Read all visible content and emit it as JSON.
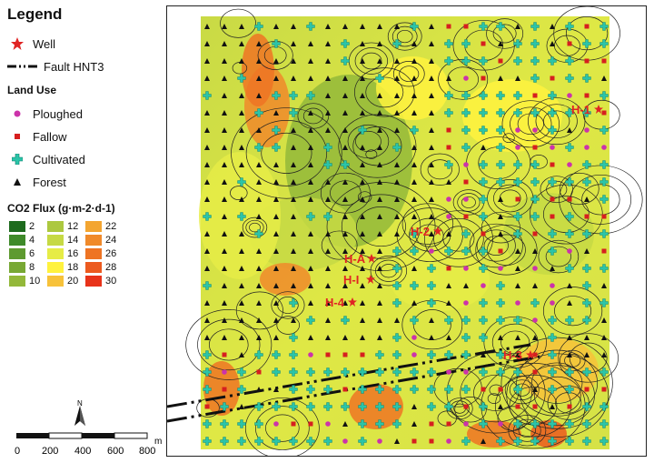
{
  "legend": {
    "title": "Legend",
    "well_label": "Well",
    "fault_label": "Fault HNT3",
    "landuse_title": "Land Use",
    "landuse": [
      {
        "label": "Ploughed",
        "symbol": "dot",
        "color": "#cc33aa"
      },
      {
        "label": "Fallow",
        "symbol": "square",
        "color": "#d61f1f"
      },
      {
        "label": "Cultivated",
        "symbol": "cross",
        "color": "#2bc4a8"
      },
      {
        "label": "Forest",
        "symbol": "triangle",
        "color": "#111111"
      }
    ],
    "flux_title": "CO2 Flux (g·m-2·d-1)",
    "flux_classes": [
      {
        "value": "2",
        "color": "#1e6b1e"
      },
      {
        "value": "4",
        "color": "#3f8a2a"
      },
      {
        "value": "6",
        "color": "#5e9a30"
      },
      {
        "value": "8",
        "color": "#78a834"
      },
      {
        "value": "10",
        "color": "#93b83a"
      },
      {
        "value": "12",
        "color": "#acc83f"
      },
      {
        "value": "14",
        "color": "#c6d944"
      },
      {
        "value": "16",
        "color": "#e6ec46"
      },
      {
        "value": "18",
        "color": "#fff23e"
      },
      {
        "value": "20",
        "color": "#f7c23a"
      },
      {
        "value": "22",
        "color": "#f3a531"
      },
      {
        "value": "24",
        "color": "#f08a2a"
      },
      {
        "value": "26",
        "color": "#ee7423"
      },
      {
        "value": "28",
        "color": "#ec5a1f"
      },
      {
        "value": "30",
        "color": "#e8331a"
      }
    ]
  },
  "scalebar": {
    "north_label": "N",
    "ticks": [
      "0",
      "200",
      "400",
      "600",
      "800"
    ],
    "unit": "m"
  },
  "map": {
    "wells": [
      "H-1",
      "H-2",
      "H-A",
      "H-I",
      "H-4",
      "H-3"
    ],
    "well_color": "#e02424"
  }
}
